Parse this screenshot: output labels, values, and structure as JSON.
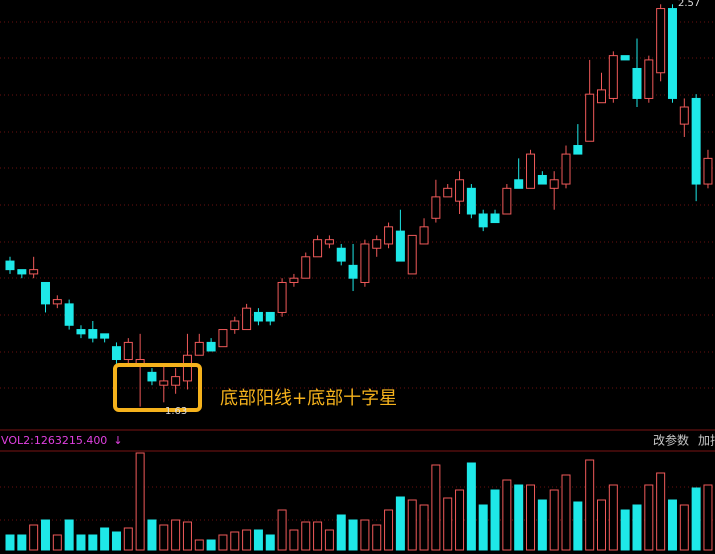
{
  "chart_data": {
    "type": "candlestick",
    "up_color": "#f05a5a",
    "down_color": "#1ee8e8",
    "ylim": [
      1.58,
      2.58
    ],
    "high_label": 2.57,
    "low_label": 1.63,
    "annotation": "底部阳线+底部十字星",
    "annotation_color": "#f5b21c",
    "candles": {
      "open": [
        1.97,
        1.95,
        1.94,
        1.92,
        1.87,
        1.87,
        1.81,
        1.81,
        1.8,
        1.77,
        1.74,
        1.73,
        1.71,
        1.68,
        1.68,
        1.69,
        1.75,
        1.78,
        1.77,
        1.81,
        1.81,
        1.85,
        1.85,
        1.85,
        1.92,
        1.93,
        1.98,
        2.01,
        2.0,
        1.96,
        1.92,
        2.0,
        2.01,
        2.04,
        1.94,
        2.01,
        2.07,
        2.12,
        2.11,
        2.14,
        2.08,
        2.08,
        2.08,
        2.16,
        2.14,
        2.17,
        2.14,
        2.15,
        2.24,
        2.25,
        2.34,
        2.35,
        2.45,
        2.42,
        2.35,
        2.41,
        2.56,
        2.29,
        2.35,
        2.15
      ],
      "high": [
        1.98,
        1.95,
        1.98,
        1.92,
        1.89,
        1.88,
        1.82,
        1.83,
        1.8,
        1.78,
        1.79,
        1.8,
        1.72,
        1.73,
        1.72,
        1.8,
        1.8,
        1.79,
        1.81,
        1.84,
        1.87,
        1.86,
        1.85,
        1.93,
        1.94,
        1.99,
        2.03,
        2.03,
        2.01,
        2.01,
        2.02,
        2.03,
        2.06,
        2.09,
        2.03,
        2.07,
        2.16,
        2.15,
        2.18,
        2.15,
        2.09,
        2.09,
        2.15,
        2.21,
        2.23,
        2.18,
        2.18,
        2.24,
        2.29,
        2.44,
        2.41,
        2.46,
        2.45,
        2.49,
        2.45,
        2.57,
        2.57,
        2.35,
        2.36,
        2.23
      ],
      "low": [
        1.94,
        1.93,
        1.93,
        1.85,
        1.86,
        1.81,
        1.79,
        1.78,
        1.78,
        1.73,
        1.73,
        1.63,
        1.68,
        1.64,
        1.66,
        1.67,
        1.75,
        1.76,
        1.77,
        1.8,
        1.81,
        1.82,
        1.82,
        1.84,
        1.91,
        1.93,
        1.98,
        2.0,
        1.96,
        1.9,
        1.91,
        1.98,
        2.0,
        1.97,
        1.94,
        2.01,
        2.06,
        2.12,
        2.08,
        2.07,
        2.04,
        2.06,
        2.08,
        2.14,
        2.14,
        2.15,
        2.09,
        2.14,
        2.22,
        2.25,
        2.34,
        2.34,
        2.44,
        2.33,
        2.34,
        2.39,
        2.34,
        2.26,
        2.11,
        2.14
      ],
      "close": [
        1.95,
        1.94,
        1.95,
        1.87,
        1.88,
        1.82,
        1.8,
        1.79,
        1.79,
        1.74,
        1.78,
        1.74,
        1.69,
        1.69,
        1.7,
        1.75,
        1.78,
        1.76,
        1.81,
        1.83,
        1.86,
        1.83,
        1.83,
        1.92,
        1.93,
        1.98,
        2.02,
        2.02,
        1.97,
        1.93,
        2.01,
        2.02,
        2.05,
        1.97,
        2.03,
        2.05,
        2.12,
        2.14,
        2.16,
        2.08,
        2.05,
        2.06,
        2.14,
        2.14,
        2.22,
        2.15,
        2.16,
        2.22,
        2.22,
        2.36,
        2.37,
        2.45,
        2.44,
        2.35,
        2.44,
        2.56,
        2.35,
        2.33,
        2.15,
        2.21
      ]
    },
    "volume": [
      330000,
      330000,
      550000,
      660000,
      330000,
      660000,
      330000,
      330000,
      484000,
      396000,
      484000,
      2134000,
      660000,
      550000,
      660000,
      616000,
      220000,
      220000,
      330000,
      396000,
      440000,
      440000,
      330000,
      880000,
      440000,
      616000,
      616000,
      440000,
      770000,
      660000,
      660000,
      550000,
      880000,
      1166000,
      1100000,
      990000,
      1870000,
      1144000,
      1320000,
      1914000,
      990000,
      1320000,
      1540000,
      1430000,
      1430000,
      1100000,
      1320000,
      1650000,
      1056000,
      1980000,
      1100000,
      1430000,
      880000,
      990000,
      1430000,
      1694000,
      1100000,
      990000,
      1364000,
      1430000
    ],
    "volume_ylim": [
      0,
      2310000
    ],
    "indicator": {
      "name": "VOL2:",
      "value": 1263215.4,
      "value_label": "1263215.400",
      "arrow": "↓",
      "color": "#e040e0"
    },
    "buttons": [
      "改参数",
      "加指"
    ]
  }
}
